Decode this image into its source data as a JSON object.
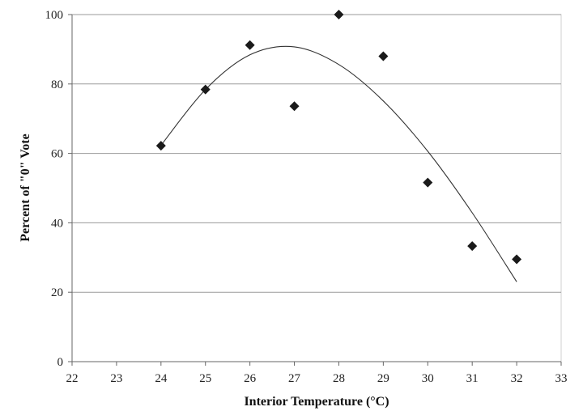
{
  "chart_data": {
    "type": "scatter",
    "xlabel": "Interior Temperature  (°C)",
    "ylabel": "Percent of  \"0\" Vote",
    "xlim": [
      22,
      33
    ],
    "ylim": [
      0,
      100
    ],
    "x_ticks": [
      22,
      23,
      24,
      25,
      26,
      27,
      28,
      29,
      30,
      31,
      32,
      33
    ],
    "y_ticks": [
      0,
      20,
      40,
      60,
      80,
      100
    ],
    "grid": "horizontal",
    "legend": "none",
    "series": [
      {
        "marker": "diamond",
        "color": "#1a1a1a",
        "points": [
          {
            "x": 24,
            "y": 62.2
          },
          {
            "x": 25,
            "y": 78.4
          },
          {
            "x": 26,
            "y": 91.2
          },
          {
            "x": 27,
            "y": 73.6
          },
          {
            "x": 28,
            "y": 100
          },
          {
            "x": 29,
            "y": 88
          },
          {
            "x": 30,
            "y": 51.6
          },
          {
            "x": 31,
            "y": 33.3
          },
          {
            "x": 32,
            "y": 29.5
          }
        ]
      }
    ],
    "trendline": {
      "type": "polynomial",
      "x_range": [
        24,
        32
      ],
      "points": [
        {
          "x": 24,
          "y": 62.3
        },
        {
          "x": 25,
          "y": 78.4
        },
        {
          "x": 26,
          "y": 88.4
        },
        {
          "x": 27,
          "y": 90.7
        },
        {
          "x": 28,
          "y": 85.6
        },
        {
          "x": 29,
          "y": 75.1
        },
        {
          "x": 30,
          "y": 60.6
        },
        {
          "x": 31,
          "y": 42.9
        },
        {
          "x": 32,
          "y": 23.0
        }
      ]
    }
  }
}
